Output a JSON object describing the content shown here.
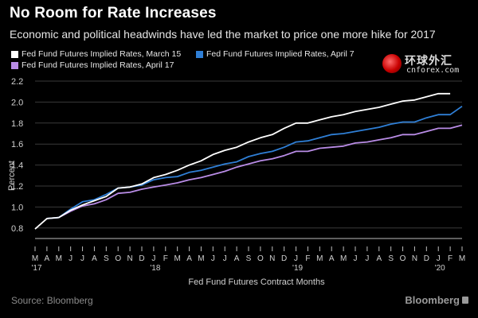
{
  "title": "No Room for Rate Increases",
  "subtitle": "Economic and political headwinds have led the market to price one more hike for 2017",
  "watermark": {
    "cn": "环球外汇",
    "site": "cnforex.com"
  },
  "source": "Source: Bloomberg",
  "brand": "Bloomberg",
  "colors": {
    "march": "#ffffff",
    "april7": "#2f7fd6",
    "april17": "#b98ce6",
    "grid": "#3a3a3a",
    "axis": "#bdbdbd"
  },
  "chart_data": {
    "type": "line",
    "title": "No Room for Rate Increases",
    "xlabel": "Fed Fund Futures Contract Months",
    "ylabel": "Percent",
    "ylim": [
      0.7,
      2.2
    ],
    "yticks": [
      "2.2",
      "2.0",
      "1.8",
      "1.6",
      "1.4",
      "1.2",
      "1.0",
      "0.8"
    ],
    "x_tick_letters": [
      "M",
      "A",
      "M",
      "J",
      "J",
      "A",
      "S",
      "O",
      "N",
      "D",
      "J",
      "F",
      "M",
      "A",
      "M",
      "J",
      "J",
      "A",
      "S",
      "O",
      "N",
      "D",
      "J",
      "F",
      "M",
      "A",
      "M",
      "J",
      "J",
      "A",
      "S",
      "O",
      "N",
      "D",
      "J",
      "F",
      "M"
    ],
    "year_labels": [
      {
        "index": 0,
        "label": "'17"
      },
      {
        "index": 10,
        "label": "'18"
      },
      {
        "index": 22,
        "label": "'19"
      },
      {
        "index": 34,
        "label": "'20"
      }
    ],
    "x": [
      "2017-03",
      "2017-04",
      "2017-05",
      "2017-06",
      "2017-07",
      "2017-08",
      "2017-09",
      "2017-10",
      "2017-11",
      "2017-12",
      "2018-01",
      "2018-02",
      "2018-03",
      "2018-04",
      "2018-05",
      "2018-06",
      "2018-07",
      "2018-08",
      "2018-09",
      "2018-10",
      "2018-11",
      "2018-12",
      "2019-01",
      "2019-02",
      "2019-03",
      "2019-04",
      "2019-05",
      "2019-06",
      "2019-07",
      "2019-08",
      "2019-09",
      "2019-10",
      "2019-11",
      "2019-12",
      "2020-01",
      "2020-02",
      "2020-03"
    ],
    "grid": true,
    "legend_position": "top-left",
    "series": [
      {
        "name": "Fed Fund Futures Implied Rates, March 15",
        "color": "#ffffff",
        "values": [
          0.79,
          0.89,
          0.9,
          0.97,
          1.02,
          1.06,
          1.1,
          1.18,
          1.19,
          1.22,
          1.28,
          1.31,
          1.35,
          1.4,
          1.44,
          1.5,
          1.54,
          1.57,
          1.62,
          1.66,
          1.69,
          1.75,
          1.8,
          1.8,
          1.83,
          1.86,
          1.88,
          1.91,
          1.93,
          1.95,
          1.98,
          2.01,
          2.02,
          2.05,
          2.08,
          2.08,
          null
        ]
      },
      {
        "name": "Fed Fund Futures Implied Rates, April 7",
        "color": "#2f7fd6",
        "values": [
          null,
          0.89,
          0.9,
          0.98,
          1.05,
          1.07,
          1.12,
          1.18,
          1.19,
          1.21,
          1.26,
          1.28,
          1.29,
          1.33,
          1.35,
          1.38,
          1.41,
          1.43,
          1.48,
          1.51,
          1.53,
          1.57,
          1.62,
          1.63,
          1.66,
          1.69,
          1.7,
          1.72,
          1.74,
          1.76,
          1.79,
          1.81,
          1.81,
          1.85,
          1.88,
          1.88,
          1.96
        ]
      },
      {
        "name": "Fed Fund Futures Implied Rates, April 17",
        "color": "#b98ce6",
        "values": [
          null,
          0.89,
          0.9,
          0.96,
          1.01,
          1.03,
          1.07,
          1.13,
          1.14,
          1.17,
          1.19,
          1.21,
          1.23,
          1.26,
          1.28,
          1.31,
          1.34,
          1.38,
          1.41,
          1.44,
          1.46,
          1.49,
          1.53,
          1.53,
          1.56,
          1.57,
          1.58,
          1.61,
          1.62,
          1.64,
          1.66,
          1.69,
          1.69,
          1.72,
          1.75,
          1.75,
          1.78
        ]
      }
    ]
  }
}
